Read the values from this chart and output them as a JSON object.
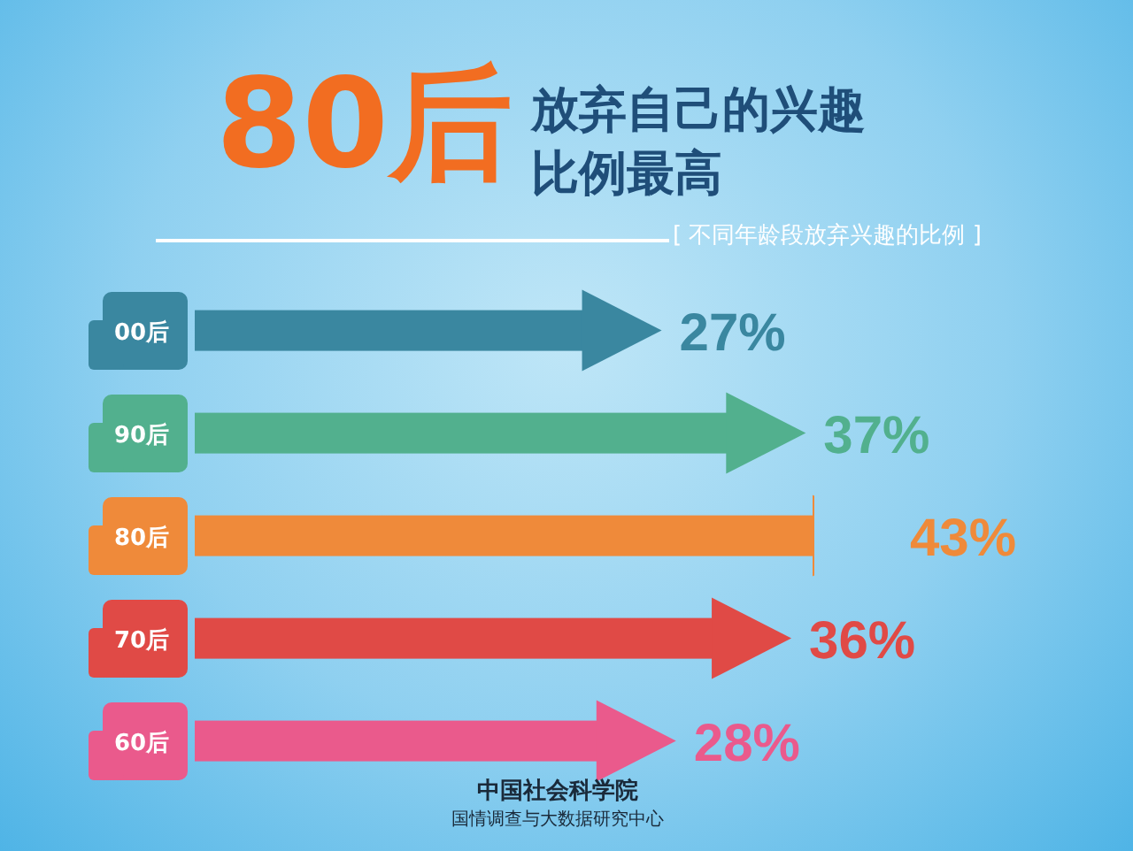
{
  "chart_data": {
    "type": "bar",
    "orientation": "horizontal",
    "title": "80后",
    "subtitle": "放弃自己的兴趣比例最高",
    "annotations": [
      "[ 不同年龄段放弃兴趣的比例 ]",
      "中国社会科学院",
      "国情调查与大数据研究中心"
    ],
    "categories": [
      "00后",
      "90后",
      "80后",
      "70后",
      "60后"
    ],
    "values": [
      27,
      37,
      43,
      36,
      28
    ],
    "colors": [
      "#3a87a0",
      "#52b08e",
      "#ef8a3a",
      "#e04a46",
      "#ea5a8c"
    ],
    "value_labels": [
      "27%",
      "37%",
      "43%",
      "36%",
      "28%"
    ]
  }
}
